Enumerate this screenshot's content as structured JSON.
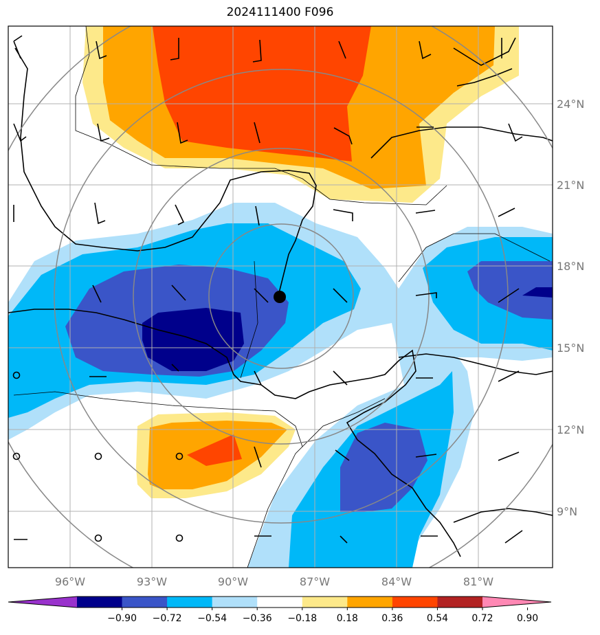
{
  "title": "2024111400 F096",
  "lat_labels": [
    "24°N",
    "21°N",
    "18°N",
    "15°N",
    "12°N",
    "9°N"
  ],
  "lon_labels": [
    "96°W",
    "93°W",
    "90°W",
    "87°W",
    "84°W",
    "81°W"
  ],
  "colorbar": {
    "ticks": [
      "−0.90",
      "−0.72",
      "−0.54",
      "−0.36",
      "−0.18",
      "0.18",
      "0.36",
      "0.54",
      "0.72",
      "0.90"
    ],
    "colors": [
      "#9932cc",
      "#00008b",
      "#3a55c8",
      "#00b8f8",
      "#b0e0fa",
      "#ffffff",
      "#fde98a",
      "#ffa500",
      "#ff4500",
      "#b22222",
      "#ff88b4"
    ]
  },
  "fill_colors": {
    "n090": "#00008b",
    "n072": "#3a55c8",
    "n054": "#00b8f8",
    "n036": "#b0e0fa",
    "p018": "#fde98a",
    "p036": "#ffa500",
    "p054": "#ff4500"
  },
  "storm_center": {
    "lat": 16.9,
    "lon": -88.3
  }
}
